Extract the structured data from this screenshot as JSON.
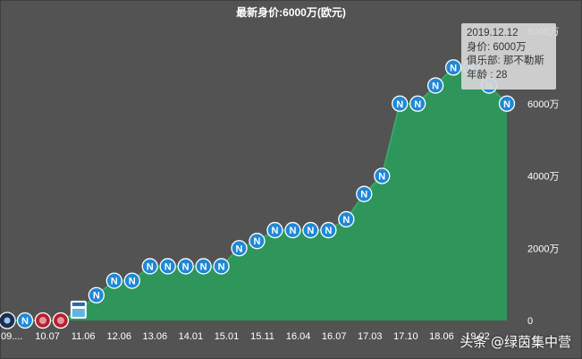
{
  "title": "最新身价:6000万(欧元)",
  "tooltip": {
    "date": "2019.12.12",
    "value_line": "身价: 6000万",
    "club_line": "俱乐部: 那不勒斯",
    "age_line": "年龄 : 28"
  },
  "watermark": "头条 @绿茵集中营",
  "colors": {
    "background": "#535353",
    "area_fill": "#2e955b",
    "line": "#35a865",
    "badge_napoli": "#1f88d6",
    "badge_red": "#b8202e",
    "badge_dark": "#1b2f53"
  },
  "chart_data": {
    "type": "area",
    "title": "最新身价:6000万(欧元)",
    "xlabel": "",
    "ylabel": "",
    "unit": "万",
    "ylim": [
      0,
      8000
    ],
    "y_ticks": [
      "0",
      "2000万",
      "4000万",
      "6000万",
      "8000万"
    ],
    "x_tick_labels": [
      "09....",
      "10.07",
      "11.06",
      "12.06",
      "13.06",
      "14.01",
      "15.01",
      "15.11",
      "16.04",
      "16.07",
      "17.03",
      "17.10",
      "18.06",
      "19.02"
    ],
    "grid": false,
    "series": [
      {
        "values": [
          0,
          0,
          0,
          0,
          250,
          700,
          1100,
          1100,
          1500,
          1500,
          1500,
          1500,
          1500,
          2000,
          2200,
          2500,
          2500,
          2500,
          2500,
          2800,
          3500,
          4000,
          6000,
          6000,
          6500,
          7000,
          7000,
          6500,
          6000
        ],
        "badges": [
          "dark",
          "napoli",
          "red",
          "red",
          "pescara",
          "napoli",
          "napoli",
          "napoli",
          "napoli",
          "napoli",
          "napoli",
          "napoli",
          "napoli",
          "napoli",
          "napoli",
          "napoli",
          "napoli",
          "napoli",
          "napoli",
          "napoli",
          "napoli",
          "napoli",
          "napoli",
          "napoli",
          "napoli",
          "napoli",
          "napoli",
          "napoli",
          "napoli"
        ]
      }
    ],
    "highlighted_point": {
      "date": "2019.12.12",
      "value": 6000,
      "club": "那不勒斯",
      "age": 28
    }
  }
}
